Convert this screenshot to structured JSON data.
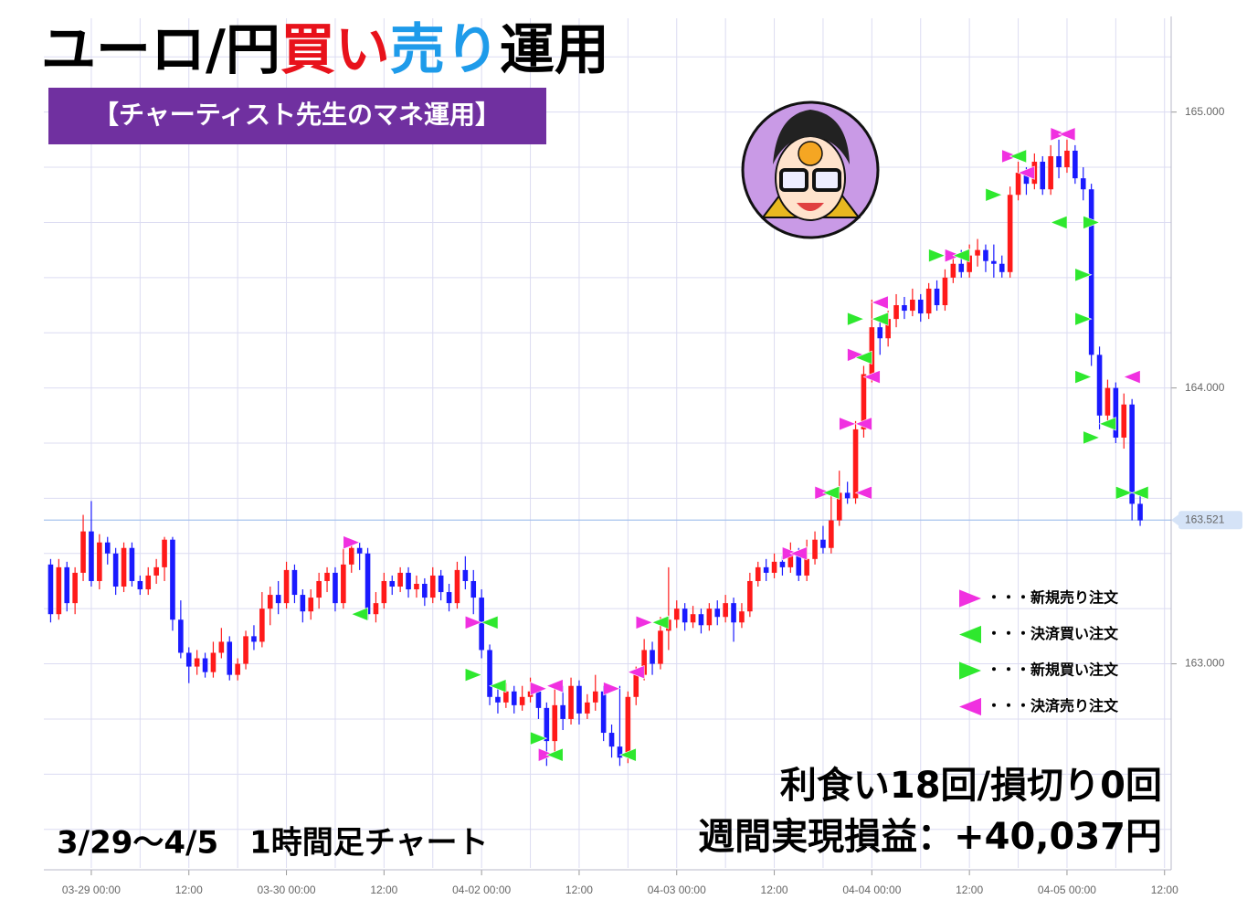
{
  "chart_data": {
    "type": "candlestick",
    "title": {
      "parts": [
        {
          "text": "ユーロ/円",
          "color": "#000000"
        },
        {
          "text": "買い",
          "color": "#e8121b"
        },
        {
          "text": "売り",
          "color": "#1e9bea"
        },
        {
          "text": "運用",
          "color": "#000000"
        }
      ]
    },
    "subtitle": "【チャーティスト先生のマネ運用】",
    "period_label": "3/29～4/5　1時間足チャート",
    "result_line1": "利食い18回/損切り0回",
    "result_line2": "週間実現損益：+40,037円",
    "up_color": "#ff1a1a",
    "down_color": "#1a1aff",
    "categories": [
      null,
      null,
      null,
      null,
      null,
      "03-29 00:00",
      null,
      null,
      null,
      null,
      null,
      null,
      null,
      null,
      null,
      null,
      null,
      "12:00",
      null,
      null,
      null,
      null,
      null,
      null,
      null,
      null,
      null,
      null,
      null,
      "03-30 00:00",
      null,
      null,
      null,
      null,
      null,
      null,
      null,
      null,
      null,
      null,
      null,
      "12:00",
      null,
      null,
      null,
      null,
      null,
      null,
      null,
      null,
      null,
      null,
      null,
      "04-02 00:00",
      null,
      null,
      null,
      null,
      null,
      null,
      null,
      null,
      null,
      null,
      null,
      "12:00",
      null,
      null,
      null,
      null,
      null,
      null,
      null,
      null,
      null,
      null,
      null,
      "04-03 00:00",
      null,
      null,
      null,
      null,
      null,
      null,
      null,
      null,
      null,
      null,
      null,
      "12:00",
      null,
      null,
      null,
      null,
      null,
      null,
      null,
      null,
      null,
      null,
      null,
      "04-04 00:00",
      null,
      null,
      null,
      null,
      null,
      null,
      null,
      null,
      null,
      null,
      null,
      "12:00",
      null,
      null,
      null,
      null,
      null,
      null,
      null,
      null,
      null,
      null,
      null,
      "04-05 00:00",
      null,
      null,
      null,
      null,
      null,
      null,
      null,
      null,
      null,
      null,
      null,
      "12:00"
    ],
    "candles": [
      [
        163.36,
        163.38,
        163.15,
        163.18
      ],
      [
        163.18,
        163.38,
        163.16,
        163.35
      ],
      [
        163.35,
        163.37,
        163.19,
        163.22
      ],
      [
        163.22,
        163.35,
        163.18,
        163.33
      ],
      [
        163.33,
        163.54,
        163.3,
        163.48
      ],
      [
        163.48,
        163.59,
        163.28,
        163.3
      ],
      [
        163.3,
        163.47,
        163.27,
        163.44
      ],
      [
        163.44,
        163.46,
        163.36,
        163.4
      ],
      [
        163.4,
        163.42,
        163.25,
        163.28
      ],
      [
        163.28,
        163.44,
        163.26,
        163.42
      ],
      [
        163.42,
        163.44,
        163.28,
        163.3
      ],
      [
        163.3,
        163.32,
        163.25,
        163.27
      ],
      [
        163.27,
        163.35,
        163.25,
        163.32
      ],
      [
        163.32,
        163.38,
        163.29,
        163.35
      ],
      [
        163.35,
        163.46,
        163.3,
        163.45
      ],
      [
        163.45,
        163.46,
        163.12,
        163.16
      ],
      [
        163.16,
        163.23,
        163.02,
        163.04
      ],
      [
        163.04,
        163.06,
        162.93,
        162.99
      ],
      [
        162.99,
        163.05,
        162.96,
        163.02
      ],
      [
        163.02,
        163.04,
        162.95,
        162.97
      ],
      [
        162.97,
        163.08,
        162.95,
        163.04
      ],
      [
        163.04,
        163.13,
        163.02,
        163.08
      ],
      [
        163.08,
        163.1,
        162.94,
        162.96
      ],
      [
        162.96,
        163.02,
        162.94,
        163.0
      ],
      [
        163.0,
        163.12,
        162.98,
        163.1
      ],
      [
        163.1,
        163.14,
        163.05,
        163.08
      ],
      [
        163.08,
        163.26,
        163.06,
        163.2
      ],
      [
        163.2,
        163.28,
        163.14,
        163.25
      ],
      [
        163.25,
        163.3,
        163.18,
        163.22
      ],
      [
        163.22,
        163.37,
        163.2,
        163.34
      ],
      [
        163.34,
        163.36,
        163.22,
        163.25
      ],
      [
        163.25,
        163.27,
        163.15,
        163.19
      ],
      [
        163.19,
        163.27,
        163.16,
        163.24
      ],
      [
        163.24,
        163.33,
        163.2,
        163.3
      ],
      [
        163.3,
        163.35,
        163.26,
        163.33
      ],
      [
        163.33,
        163.35,
        163.19,
        163.22
      ],
      [
        163.22,
        163.42,
        163.2,
        163.36
      ],
      [
        163.36,
        163.45,
        163.33,
        163.42
      ],
      [
        163.42,
        163.44,
        163.34,
        163.4
      ],
      [
        163.4,
        163.42,
        163.16,
        163.18
      ],
      [
        163.18,
        163.26,
        163.15,
        163.22
      ],
      [
        163.22,
        163.33,
        163.2,
        163.3
      ],
      [
        163.3,
        163.32,
        163.25,
        163.28
      ],
      [
        163.28,
        163.35,
        163.26,
        163.33
      ],
      [
        163.33,
        163.35,
        163.24,
        163.27
      ],
      [
        163.27,
        163.32,
        163.24,
        163.29
      ],
      [
        163.29,
        163.31,
        163.21,
        163.24
      ],
      [
        163.24,
        163.35,
        163.22,
        163.32
      ],
      [
        163.32,
        163.34,
        163.23,
        163.26
      ],
      [
        163.26,
        163.29,
        163.19,
        163.22
      ],
      [
        163.22,
        163.37,
        163.2,
        163.34
      ],
      [
        163.34,
        163.39,
        163.27,
        163.3
      ],
      [
        163.3,
        163.34,
        163.18,
        163.24
      ],
      [
        163.24,
        163.27,
        163.02,
        163.05
      ],
      [
        163.05,
        163.07,
        162.85,
        162.88
      ],
      [
        162.88,
        162.92,
        162.82,
        162.86
      ],
      [
        162.86,
        162.93,
        162.84,
        162.9
      ],
      [
        162.9,
        162.92,
        162.82,
        162.85
      ],
      [
        162.85,
        162.92,
        162.83,
        162.88
      ],
      [
        162.88,
        162.95,
        162.86,
        162.9
      ],
      [
        162.9,
        162.92,
        162.8,
        162.84
      ],
      [
        162.84,
        162.86,
        162.63,
        162.72
      ],
      [
        162.72,
        162.93,
        162.68,
        162.85
      ],
      [
        162.85,
        162.92,
        162.76,
        162.8
      ],
      [
        162.8,
        162.95,
        162.78,
        162.92
      ],
      [
        162.92,
        162.94,
        162.78,
        162.82
      ],
      [
        162.82,
        162.89,
        162.8,
        162.86
      ],
      [
        162.86,
        162.96,
        162.83,
        162.9
      ],
      [
        162.9,
        162.92,
        162.72,
        162.75
      ],
      [
        162.75,
        162.78,
        162.66,
        162.7
      ],
      [
        162.7,
        162.92,
        162.63,
        162.66
      ],
      [
        162.66,
        162.9,
        162.64,
        162.88
      ],
      [
        162.88,
        162.99,
        162.85,
        162.96
      ],
      [
        162.96,
        163.09,
        162.94,
        163.05
      ],
      [
        163.05,
        163.08,
        162.96,
        163.0
      ],
      [
        163.0,
        163.17,
        162.98,
        163.12
      ],
      [
        163.12,
        163.35,
        163.05,
        163.16
      ],
      [
        163.16,
        163.23,
        163.13,
        163.2
      ],
      [
        163.2,
        163.22,
        163.12,
        163.15
      ],
      [
        163.15,
        163.21,
        163.13,
        163.18
      ],
      [
        163.18,
        163.2,
        163.11,
        163.14
      ],
      [
        163.14,
        163.22,
        163.12,
        163.2
      ],
      [
        163.2,
        163.23,
        163.14,
        163.17
      ],
      [
        163.17,
        163.25,
        163.15,
        163.22
      ],
      [
        163.22,
        163.24,
        163.08,
        163.15
      ],
      [
        163.15,
        163.22,
        163.13,
        163.19
      ],
      [
        163.19,
        163.33,
        163.17,
        163.3
      ],
      [
        163.3,
        163.37,
        163.28,
        163.35
      ],
      [
        163.35,
        163.38,
        163.3,
        163.33
      ],
      [
        163.33,
        163.4,
        163.31,
        163.37
      ],
      [
        163.37,
        163.39,
        163.32,
        163.35
      ],
      [
        163.35,
        163.44,
        163.33,
        163.4
      ],
      [
        163.4,
        163.42,
        163.3,
        163.32
      ],
      [
        163.32,
        163.45,
        163.3,
        163.38
      ],
      [
        163.38,
        163.48,
        163.36,
        163.45
      ],
      [
        163.45,
        163.5,
        163.4,
        163.42
      ],
      [
        163.42,
        163.62,
        163.4,
        163.52
      ],
      [
        163.52,
        163.7,
        163.5,
        163.62
      ],
      [
        163.62,
        163.66,
        163.58,
        163.6
      ],
      [
        163.6,
        163.88,
        163.58,
        163.85
      ],
      [
        163.85,
        164.08,
        163.82,
        164.05
      ],
      [
        164.05,
        164.32,
        164.02,
        164.22
      ],
      [
        164.22,
        164.25,
        164.12,
        164.18
      ],
      [
        164.18,
        164.28,
        164.15,
        164.25
      ],
      [
        164.25,
        164.34,
        164.22,
        164.3
      ],
      [
        164.3,
        164.33,
        164.25,
        164.28
      ],
      [
        164.28,
        164.36,
        164.26,
        164.32
      ],
      [
        164.32,
        164.34,
        164.24,
        164.27
      ],
      [
        164.27,
        164.38,
        164.25,
        164.36
      ],
      [
        164.36,
        164.39,
        164.28,
        164.3
      ],
      [
        164.3,
        164.43,
        164.28,
        164.4
      ],
      [
        164.4,
        164.48,
        164.38,
        164.45
      ],
      [
        164.45,
        164.5,
        164.4,
        164.42
      ],
      [
        164.42,
        164.52,
        164.4,
        164.48
      ],
      [
        164.48,
        164.54,
        164.44,
        164.5
      ],
      [
        164.5,
        164.52,
        164.42,
        164.46
      ],
      [
        164.46,
        164.52,
        164.4,
        164.45
      ],
      [
        164.45,
        164.48,
        164.4,
        164.42
      ],
      [
        164.42,
        164.73,
        164.4,
        164.7
      ],
      [
        164.7,
        164.82,
        164.68,
        164.78
      ],
      [
        164.78,
        164.8,
        164.7,
        164.74
      ],
      [
        164.74,
        164.85,
        164.72,
        164.82
      ],
      [
        164.82,
        164.84,
        164.7,
        164.72
      ],
      [
        164.72,
        164.88,
        164.7,
        164.84
      ],
      [
        164.84,
        164.9,
        164.76,
        164.8
      ],
      [
        164.8,
        164.9,
        164.78,
        164.86
      ],
      [
        164.86,
        164.88,
        164.74,
        164.76
      ],
      [
        164.76,
        164.8,
        164.68,
        164.72
      ],
      [
        164.72,
        164.74,
        164.08,
        164.12
      ],
      [
        164.12,
        164.15,
        163.85,
        163.9
      ],
      [
        163.9,
        164.03,
        163.87,
        164.0
      ],
      [
        164.0,
        164.02,
        163.8,
        163.82
      ],
      [
        163.82,
        163.98,
        163.78,
        163.94
      ],
      [
        163.94,
        163.96,
        163.52,
        163.58
      ],
      [
        163.58,
        163.63,
        163.5,
        163.52
      ],
      null,
      null,
      null
    ],
    "ylim": [
      162.26,
      165.34
    ],
    "yticks": [
      {
        "value": 163,
        "label": "163.000"
      },
      {
        "value": 164,
        "label": "164.000"
      },
      {
        "value": 165,
        "label": "165.000"
      }
    ],
    "y_grid": [
      162.4,
      162.6,
      162.8,
      163.2,
      163.4,
      163.6,
      163.8,
      164.2,
      164.4,
      164.6,
      164.8,
      165.2
    ],
    "last_price": {
      "value": 163.521,
      "label": "163.521"
    },
    "markers": [
      {
        "name": "・・・新規売り注文",
        "color": "#f030e0",
        "direction": "right",
        "points": [
          [
            37,
            163.44
          ],
          [
            52,
            163.15
          ],
          [
            60,
            162.91
          ],
          [
            61,
            162.67
          ],
          [
            69,
            162.91
          ],
          [
            73,
            163.15
          ],
          [
            91,
            163.4
          ],
          [
            95,
            163.62
          ],
          [
            98,
            163.87
          ],
          [
            99,
            164.12
          ],
          [
            111,
            164.48
          ],
          [
            118,
            164.84
          ],
          [
            124,
            164.92
          ]
        ]
      },
      {
        "name": "・・・決済買い注文",
        "color": "#2ee82e",
        "direction": "left",
        "points": [
          [
            38,
            163.18
          ],
          [
            54,
            163.15
          ],
          [
            55,
            162.92
          ],
          [
            62,
            162.67
          ],
          [
            71,
            162.67
          ],
          [
            75,
            163.15
          ],
          [
            96,
            163.62
          ],
          [
            100,
            164.11
          ],
          [
            102,
            164.25
          ],
          [
            112,
            164.48
          ],
          [
            119,
            164.84
          ],
          [
            125,
            164.92
          ],
          [
            124,
            164.6
          ],
          [
            130,
            163.87
          ],
          [
            134,
            163.62
          ]
        ]
      },
      {
        "name": "・・・新規買い注文",
        "color": "#2ee82e",
        "direction": "right",
        "points": [
          [
            52,
            162.96
          ],
          [
            60,
            162.73
          ],
          [
            99,
            164.25
          ],
          [
            109,
            164.48
          ],
          [
            116,
            164.7
          ],
          [
            128,
            164.6
          ],
          [
            127,
            164.41
          ],
          [
            127,
            164.25
          ],
          [
            127,
            164.04
          ],
          [
            128,
            163.82
          ],
          [
            132,
            163.62
          ]
        ]
      },
      {
        "name": "・・・決済売り注文",
        "color": "#f030e0",
        "direction": "left",
        "points": [
          [
            72,
            162.97
          ],
          [
            62,
            162.92
          ],
          [
            92,
            163.4
          ],
          [
            100,
            163.62
          ],
          [
            100,
            163.87
          ],
          [
            101,
            164.04
          ],
          [
            102,
            164.31
          ],
          [
            120,
            164.78
          ],
          [
            125,
            164.92
          ],
          [
            133,
            164.04
          ]
        ]
      }
    ]
  }
}
